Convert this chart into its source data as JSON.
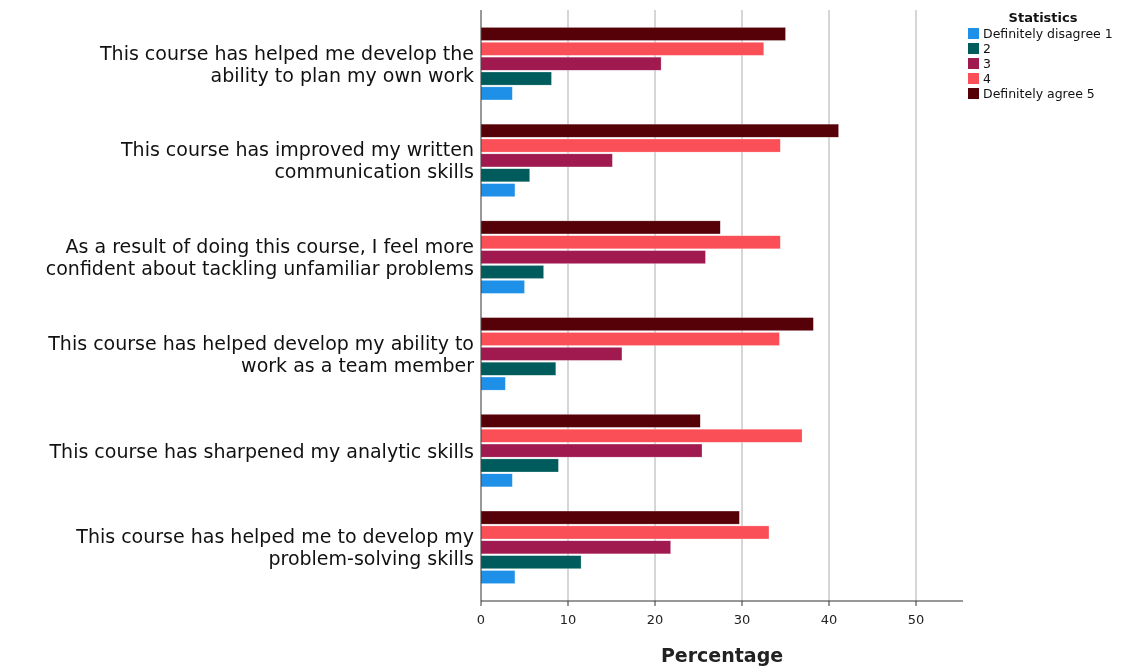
{
  "chart_data": {
    "type": "bar",
    "orientation": "horizontal",
    "xlabel": "Percentage",
    "legend_title": "Statistics",
    "legend": "top right",
    "grid": "x",
    "categories": [
      "This course has helped me develop the ability to plan my own work",
      "This course has improved my written communication skills",
      "As a result of doing this course, I feel more confident about tackling unfamiliar problems",
      "This course has helped develop my ability to work as a team member",
      "This course has sharpened my analytic skills",
      "This course has helped me to develop my problem-solving skills"
    ],
    "xlim": [
      0,
      55.4
    ],
    "xticks": [
      0,
      10,
      20,
      30,
      40,
      50
    ],
    "series": [
      {
        "name": "Definitely disagree 1",
        "color": "#1e90e8",
        "values": [
          3.6,
          3.9,
          5.0,
          2.8,
          3.6,
          3.9
        ]
      },
      {
        "name": "2",
        "color": "#005c5c",
        "values": [
          8.1,
          5.6,
          7.2,
          8.6,
          8.9,
          11.5
        ]
      },
      {
        "name": "3",
        "color": "#a01a50",
        "values": [
          20.7,
          15.1,
          25.8,
          16.2,
          25.4,
          21.8
        ]
      },
      {
        "name": "4",
        "color": "#fb4f58",
        "values": [
          32.5,
          34.4,
          34.4,
          34.3,
          36.9,
          33.1
        ]
      },
      {
        "name": "Definitely agree 5",
        "color": "#560008",
        "values": [
          35.0,
          41.1,
          27.5,
          38.2,
          25.2,
          29.7
        ]
      }
    ]
  }
}
